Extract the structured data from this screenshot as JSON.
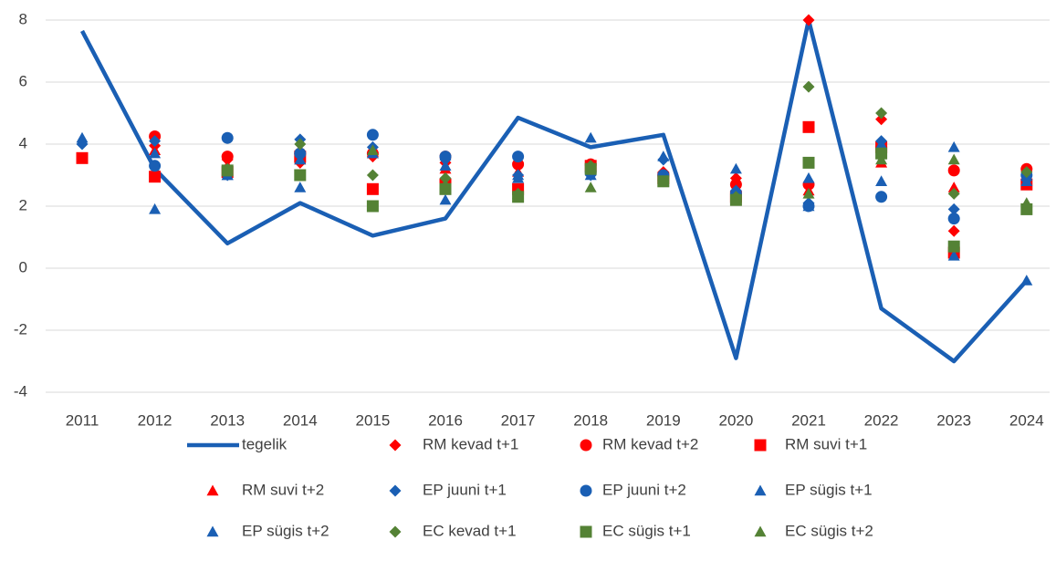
{
  "chart_data": {
    "type": "line",
    "categories": [
      "2011",
      "2012",
      "2013",
      "2014",
      "2015",
      "2016",
      "2017",
      "2018",
      "2019",
      "2020",
      "2021",
      "2022",
      "2023",
      "2024"
    ],
    "ylim": [
      -4,
      8
    ],
    "yticks": [
      -4,
      -2,
      0,
      2,
      4,
      6,
      8
    ],
    "grid": true,
    "legend": "bottom",
    "series": [
      {
        "name": "tegelik",
        "color": "#1a5fb4",
        "marker": "line",
        "values": [
          7.65,
          3.2,
          0.8,
          2.1,
          1.05,
          1.6,
          4.85,
          3.9,
          4.3,
          -2.9,
          8.0,
          -1.3,
          -3.0,
          -0.4
        ]
      },
      {
        "name": "RM kevad t+1",
        "color": "#ff0000",
        "marker": "diamond",
        "values": [
          null,
          3.95,
          3.5,
          3.4,
          3.6,
          3.4,
          3.4,
          3.3,
          3.1,
          2.9,
          8.0,
          4.8,
          1.2,
          3.1
        ]
      },
      {
        "name": "RM kevad t+2",
        "color": "#ff0000",
        "marker": "circle",
        "values": [
          null,
          4.25,
          3.6,
          3.7,
          3.7,
          3.6,
          3.35,
          3.35,
          3.0,
          2.7,
          2.7,
          3.9,
          3.15,
          3.2
        ]
      },
      {
        "name": "RM suvi t+1",
        "color": "#ff0000",
        "marker": "square",
        "values": [
          3.55,
          2.95,
          3.1,
          3.6,
          2.55,
          2.7,
          2.55,
          3.3,
          2.9,
          2.3,
          4.55,
          3.9,
          0.5,
          2.7
        ]
      },
      {
        "name": "RM suvi t+2",
        "color": "#ff0000",
        "marker": "triangle",
        "values": [
          null,
          3.8,
          3.3,
          3.5,
          3.7,
          3.2,
          3.1,
          3.2,
          3.0,
          2.6,
          2.5,
          3.4,
          2.6,
          3.0
        ]
      },
      {
        "name": "EP juuni t+1",
        "color": "#1a5fb4",
        "marker": "diamond",
        "values": [
          4.0,
          4.1,
          3.0,
          4.15,
          3.9,
          3.5,
          3.0,
          3.0,
          3.5,
          2.5,
          2.1,
          4.1,
          1.9,
          2.85
        ]
      },
      {
        "name": "EP juuni t+2",
        "color": "#1a5fb4",
        "marker": "circle",
        "values": [
          null,
          3.3,
          4.2,
          3.7,
          4.3,
          3.6,
          3.6,
          3.1,
          3.0,
          2.4,
          2.0,
          2.3,
          1.6,
          3.0
        ]
      },
      {
        "name": "EP sügis t+1",
        "color": "#1a5fb4",
        "marker": "triangle",
        "values": [
          4.2,
          1.9,
          3.0,
          2.6,
          2.0,
          2.2,
          2.9,
          4.2,
          3.6,
          3.2,
          2.9,
          2.8,
          3.9,
          -0.4
        ]
      },
      {
        "name": "EP sügis t+2",
        "color": "#1a5fb4",
        "marker": "triangle",
        "values": [
          null,
          3.7,
          3.0,
          3.5,
          3.7,
          3.3,
          3.0,
          3.0,
          3.0,
          2.5,
          2.0,
          4.0,
          0.4,
          2.8
        ]
      },
      {
        "name": "EC kevad t+1",
        "color": "#548235",
        "marker": "diamond",
        "values": [
          null,
          null,
          3.2,
          4.0,
          3.0,
          2.9,
          2.4,
          3.3,
          2.8,
          2.3,
          5.85,
          5.0,
          2.4,
          3.1
        ]
      },
      {
        "name": "EC sügis t+1",
        "color": "#548235",
        "marker": "square",
        "values": [
          null,
          null,
          3.15,
          3.0,
          2.0,
          2.55,
          2.3,
          3.2,
          2.8,
          2.2,
          3.4,
          3.7,
          0.7,
          1.9
        ]
      },
      {
        "name": "EC sügis t+2",
        "color": "#548235",
        "marker": "triangle",
        "values": [
          null,
          null,
          null,
          null,
          3.8,
          2.7,
          2.4,
          2.6,
          2.8,
          2.2,
          2.4,
          3.5,
          3.5,
          2.1
        ]
      }
    ]
  }
}
